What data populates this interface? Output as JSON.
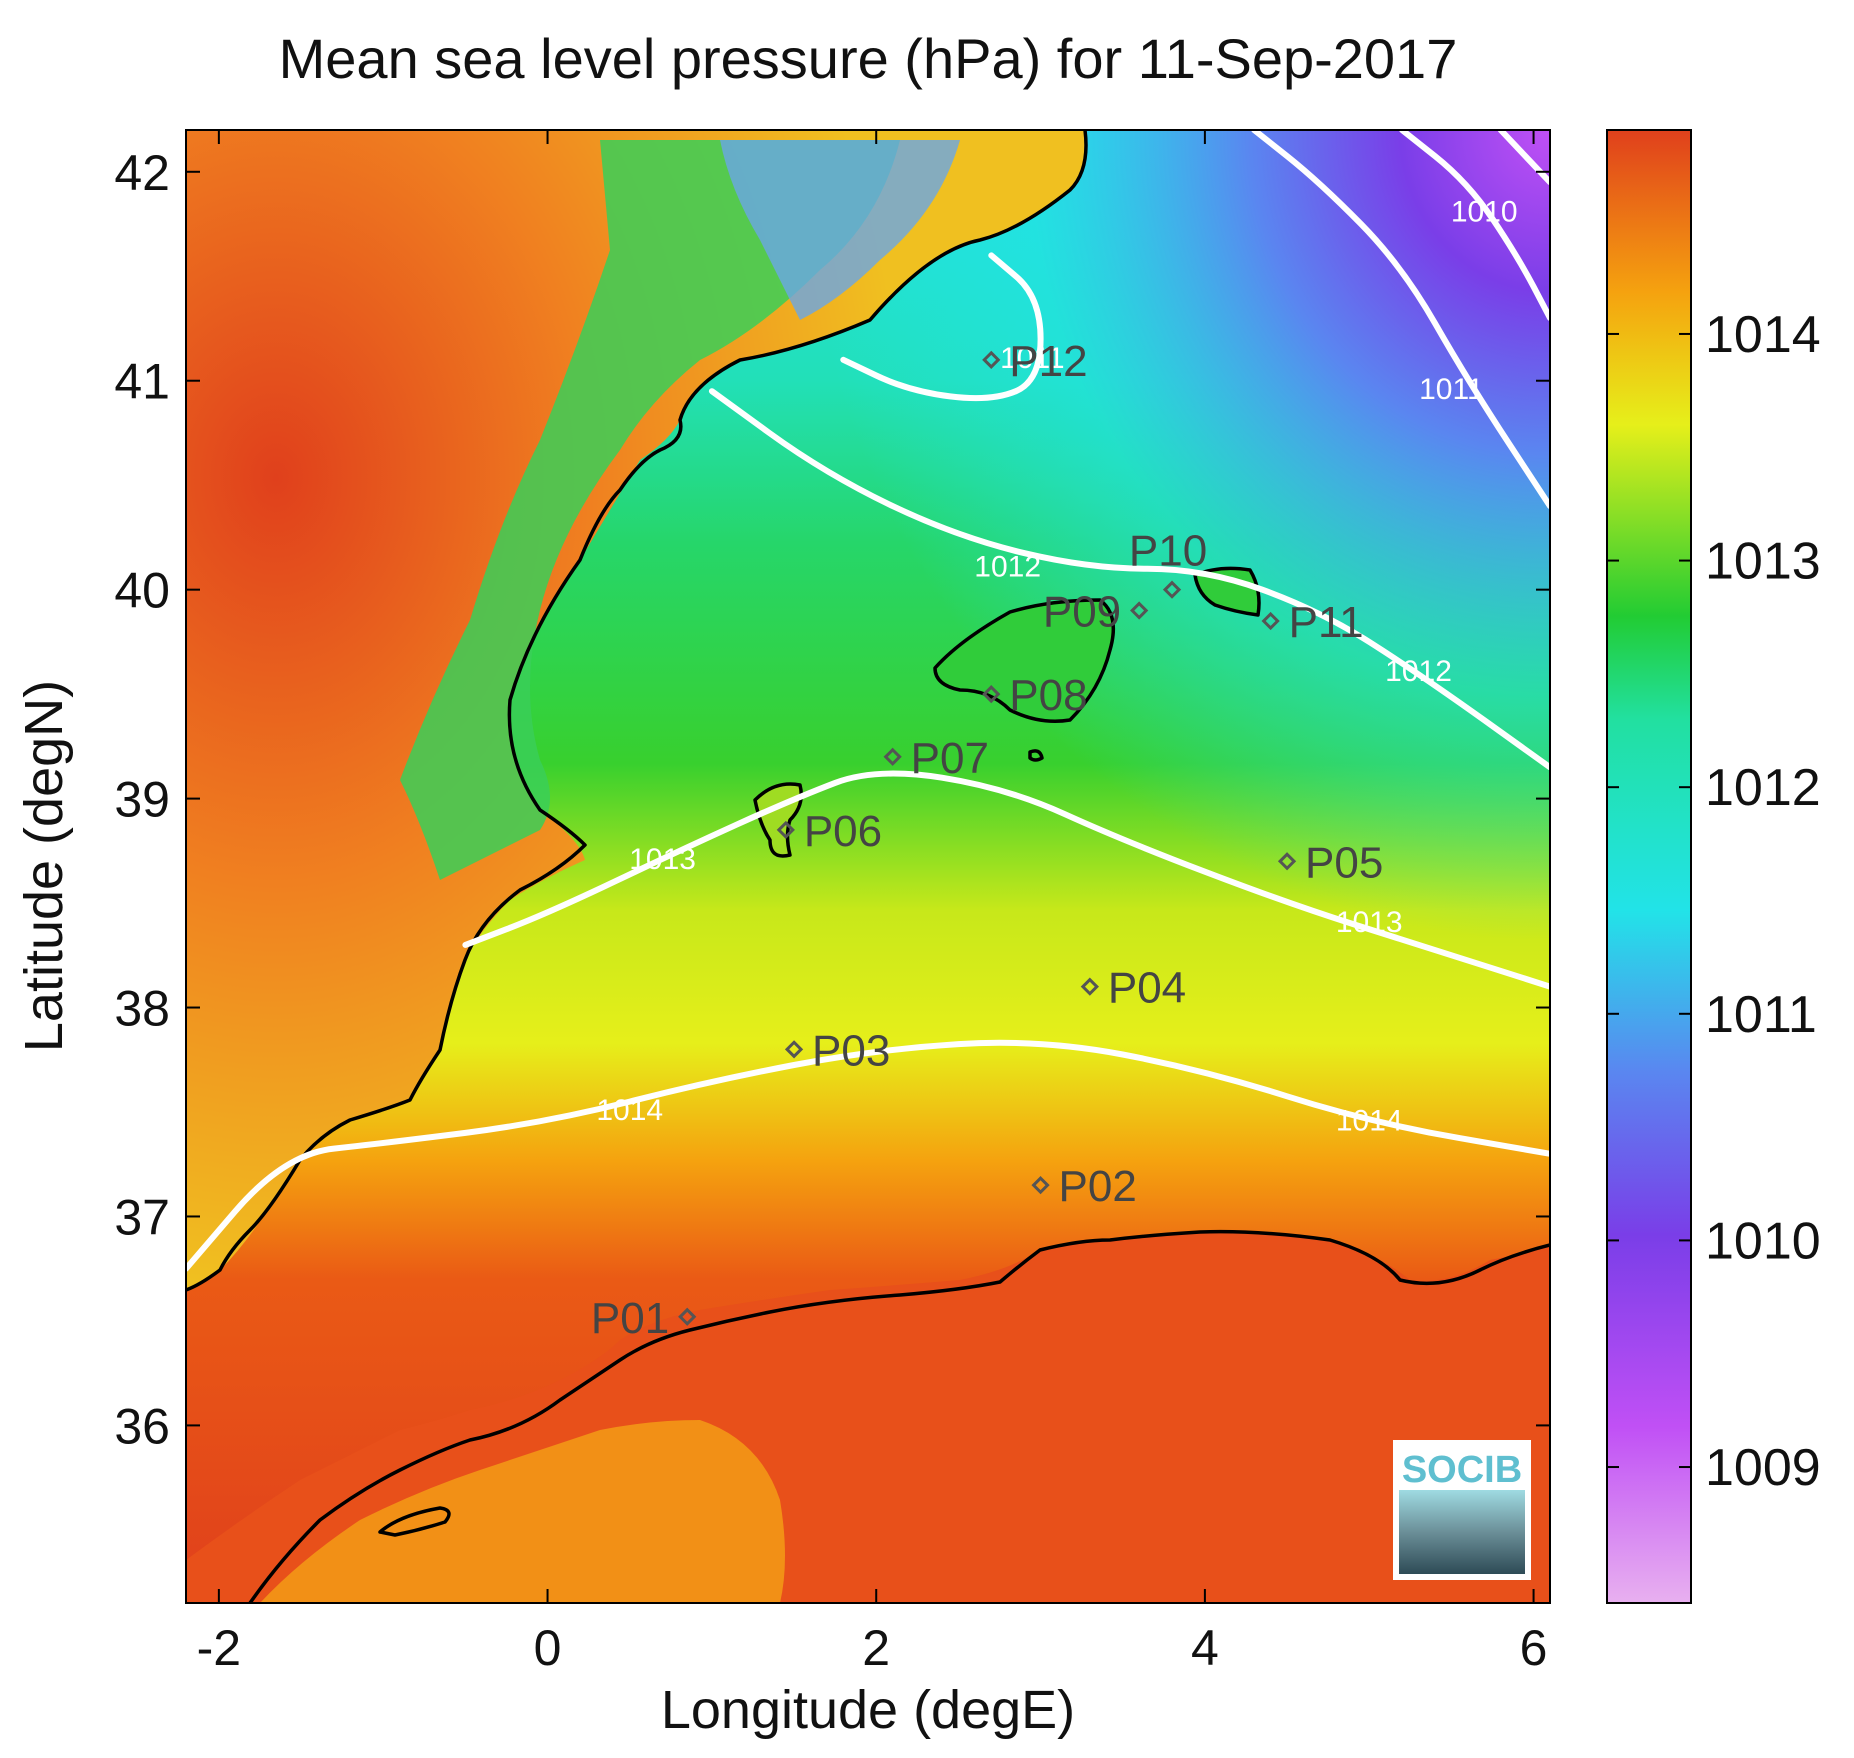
{
  "title": "Mean sea level pressure (hPa) for 11-Sep-2017",
  "xlabel": "Longitude (degE)",
  "ylabel": "Latitude (degN)",
  "logo_text": "SOCIB",
  "colors": {
    "high": "#e0401c",
    "mid_high": "#f5a20f",
    "mid": "#e6ef1a",
    "green": "#22cc33",
    "cyan": "#22e3e8",
    "blue": "#5a86f0",
    "purple": "#7a3ee8",
    "magenta": "#c050f5",
    "coast": "#000000",
    "contour": "#ffffff",
    "marker": "#555555"
  },
  "chart_data": {
    "type": "heatmap",
    "title": "Mean sea level pressure (hPa) for 11-Sep-2017",
    "xlabel": "Longitude (degE)",
    "ylabel": "Latitude (degN)",
    "xlim": [
      -2.2,
      6.1
    ],
    "ylim": [
      35.15,
      42.2
    ],
    "x_ticks": [
      "-2",
      "0",
      "2",
      "4",
      "6"
    ],
    "x_tick_values": [
      -2,
      0,
      2,
      4,
      6
    ],
    "y_ticks": [
      "36",
      "37",
      "38",
      "39",
      "40",
      "41",
      "42"
    ],
    "y_tick_values": [
      36,
      37,
      38,
      39,
      40,
      41,
      42
    ],
    "colorbar": {
      "range": [
        1008.4,
        1014.9
      ],
      "ticks": [
        "1009",
        "1010",
        "1011",
        "1012",
        "1013",
        "1014"
      ],
      "tick_values": [
        1009,
        1010,
        1011,
        1012,
        1013,
        1014
      ]
    },
    "contours": [
      {
        "level": "1014",
        "points": [
          [
            -2.2,
            36.75
          ],
          [
            -1.6,
            37.3
          ],
          [
            -1.0,
            37.35
          ],
          [
            0.0,
            37.45
          ],
          [
            1.0,
            37.65
          ],
          [
            2.0,
            37.8
          ],
          [
            3.0,
            37.85
          ],
          [
            4.0,
            37.7
          ],
          [
            5.0,
            37.45
          ],
          [
            6.1,
            37.3
          ]
        ],
        "labels": [
          {
            "text": "1014",
            "lon": 0.5,
            "lat": 37.5
          },
          {
            "text": "1014",
            "lon": 5.0,
            "lat": 37.45
          }
        ]
      },
      {
        "level": "1013",
        "points": [
          [
            -0.5,
            38.3
          ],
          [
            0.0,
            38.45
          ],
          [
            0.8,
            38.75
          ],
          [
            1.5,
            39.0
          ],
          [
            2.0,
            39.15
          ],
          [
            2.8,
            39.05
          ],
          [
            3.5,
            38.8
          ],
          [
            4.5,
            38.5
          ],
          [
            5.3,
            38.3
          ],
          [
            6.1,
            38.1
          ]
        ],
        "labels": [
          {
            "text": "1013",
            "lon": 0.7,
            "lat": 38.7
          },
          {
            "text": "1013",
            "lon": 5.0,
            "lat": 38.4
          }
        ]
      },
      {
        "level": "1012",
        "points": [
          [
            1.0,
            40.95
          ],
          [
            1.7,
            40.55
          ],
          [
            2.5,
            40.25
          ],
          [
            3.3,
            40.1
          ],
          [
            4.0,
            40.1
          ],
          [
            4.7,
            39.9
          ],
          [
            5.3,
            39.6
          ],
          [
            6.1,
            39.15
          ]
        ],
        "labels": [
          {
            "text": "1012",
            "lon": 2.8,
            "lat": 40.1
          },
          {
            "text": "1012",
            "lon": 5.3,
            "lat": 39.6
          }
        ]
      },
      {
        "level": "1011a",
        "points": [
          [
            1.8,
            41.1
          ],
          [
            2.2,
            40.95
          ],
          [
            2.7,
            40.9
          ],
          [
            3.0,
            41.0
          ],
          [
            3.0,
            41.4
          ],
          [
            2.7,
            41.6
          ]
        ],
        "labels": [
          {
            "text": "1011",
            "lon": 2.95,
            "lat": 41.1
          }
        ]
      },
      {
        "level": "1011b",
        "points": [
          [
            4.3,
            42.2
          ],
          [
            4.7,
            41.95
          ],
          [
            5.2,
            41.55
          ],
          [
            5.6,
            41.0
          ],
          [
            6.1,
            40.4
          ]
        ],
        "labels": [
          {
            "text": "1011",
            "lon": 5.5,
            "lat": 40.95
          }
        ]
      },
      {
        "level": "1010",
        "points": [
          [
            5.2,
            42.2
          ],
          [
            5.6,
            41.95
          ],
          [
            5.9,
            41.6
          ],
          [
            6.1,
            41.3
          ]
        ],
        "labels": [
          {
            "text": "1010",
            "lon": 5.7,
            "lat": 41.8
          }
        ]
      },
      {
        "level": "1009",
        "points": [
          [
            5.8,
            42.2
          ],
          [
            6.1,
            41.95
          ]
        ],
        "labels": []
      }
    ],
    "stations": [
      {
        "name": "P01",
        "lon": 0.85,
        "lat": 36.52,
        "label_side": "left"
      },
      {
        "name": "P02",
        "lon": 3.0,
        "lat": 37.15,
        "label_side": "right"
      },
      {
        "name": "P03",
        "lon": 1.5,
        "lat": 37.8,
        "label_side": "right"
      },
      {
        "name": "P04",
        "lon": 3.3,
        "lat": 38.1,
        "label_side": "right"
      },
      {
        "name": "P05",
        "lon": 4.5,
        "lat": 38.7,
        "label_side": "right"
      },
      {
        "name": "P06",
        "lon": 1.45,
        "lat": 38.85,
        "label_side": "right"
      },
      {
        "name": "P07",
        "lon": 2.1,
        "lat": 39.2,
        "label_side": "right"
      },
      {
        "name": "P08",
        "lon": 2.7,
        "lat": 39.5,
        "label_side": "right"
      },
      {
        "name": "P09",
        "lon": 3.6,
        "lat": 39.9,
        "label_side": "left"
      },
      {
        "name": "P10",
        "lon": 3.8,
        "lat": 40.0,
        "label_side": "above"
      },
      {
        "name": "P11",
        "lon": 4.4,
        "lat": 39.85,
        "label_side": "right"
      },
      {
        "name": "P12",
        "lon": 2.7,
        "lat": 41.1,
        "label_side": "right"
      }
    ]
  }
}
